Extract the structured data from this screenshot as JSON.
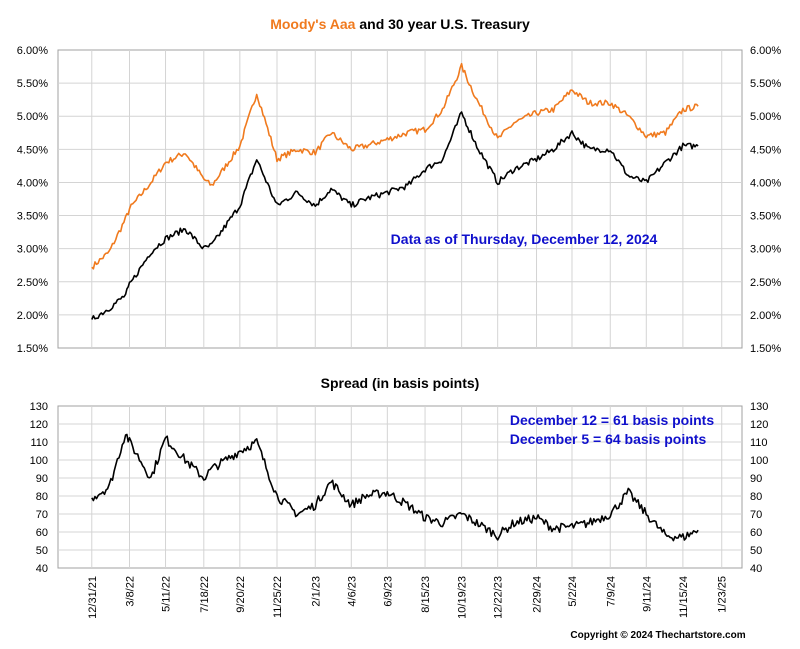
{
  "colors": {
    "aaa": "#F07A1E",
    "treasury": "#000000",
    "annotation": "#1010CC",
    "grid": "#D4D4D4",
    "frame": "#A0A0A0"
  },
  "chart_data": [
    {
      "type": "line",
      "title_part1": "Moody's Aaa",
      "title_part2": " and 30 year U.S. Treasury",
      "ylim": [
        1.5,
        6.0
      ],
      "y_ticks": [
        "1.50%",
        "2.00%",
        "2.50%",
        "3.00%",
        "3.50%",
        "4.00%",
        "4.50%",
        "5.00%",
        "5.50%",
        "6.00%"
      ],
      "grid": true,
      "annotation": "Data as of Thursday, December 12, 2024",
      "series": [
        {
          "name": "Moody's Aaa",
          "color": "#F07A1E",
          "x": [
            "12/31/21",
            "1/31/22",
            "3/1/22",
            "3/8/22",
            "4/15/22",
            "5/11/22",
            "6/15/22",
            "7/18/22",
            "8/1/22",
            "9/20/22",
            "10/20/22",
            "11/25/22",
            "12/31/22",
            "2/1/23",
            "3/1/23",
            "4/6/23",
            "5/1/23",
            "6/9/23",
            "7/15/23",
            "8/15/23",
            "9/15/23",
            "10/19/23",
            "11/15/23",
            "12/22/23",
            "1/20/24",
            "2/29/24",
            "3/30/24",
            "5/2/24",
            "6/1/24",
            "7/9/24",
            "8/10/24",
            "9/11/24",
            "10/15/24",
            "11/15/24",
            "12/12/24"
          ],
          "values": [
            2.72,
            2.95,
            3.45,
            3.6,
            4.0,
            4.3,
            4.45,
            4.05,
            3.95,
            4.55,
            5.35,
            4.35,
            4.5,
            4.45,
            4.75,
            4.5,
            4.55,
            4.65,
            4.75,
            4.8,
            5.1,
            5.75,
            5.25,
            4.65,
            4.9,
            5.05,
            5.1,
            5.4,
            5.2,
            5.2,
            5.0,
            4.7,
            4.75,
            5.1,
            5.15
          ]
        },
        {
          "name": "30 year U.S. Treasury",
          "color": "#000000",
          "x": [
            "12/31/21",
            "1/31/22",
            "3/1/22",
            "3/8/22",
            "4/15/22",
            "5/11/22",
            "6/15/22",
            "7/18/22",
            "8/1/22",
            "9/20/22",
            "10/20/22",
            "11/25/22",
            "12/31/22",
            "2/1/23",
            "3/1/23",
            "4/6/23",
            "5/1/23",
            "6/9/23",
            "7/15/23",
            "8/15/23",
            "9/15/23",
            "10/19/23",
            "11/15/23",
            "12/22/23",
            "1/20/24",
            "2/29/24",
            "3/30/24",
            "5/2/24",
            "6/1/24",
            "7/9/24",
            "8/10/24",
            "9/11/24",
            "10/15/24",
            "11/15/24",
            "12/12/24"
          ],
          "values": [
            1.93,
            2.1,
            2.3,
            2.45,
            2.95,
            3.15,
            3.3,
            3.0,
            3.05,
            3.65,
            4.35,
            3.65,
            3.85,
            3.65,
            3.9,
            3.65,
            3.75,
            3.85,
            3.95,
            4.2,
            4.35,
            5.05,
            4.55,
            4.0,
            4.2,
            4.35,
            4.5,
            4.75,
            4.5,
            4.5,
            4.1,
            4.0,
            4.3,
            4.55,
            4.55
          ]
        }
      ]
    },
    {
      "type": "line",
      "title": "Spread (in basis points)",
      "ylim": [
        40,
        130
      ],
      "y_ticks": [
        "40",
        "50",
        "60",
        "70",
        "80",
        "90",
        "100",
        "110",
        "120",
        "130"
      ],
      "grid": true,
      "annotations": [
        "December 12 = 61 basis points",
        "December 5 = 64 basis points"
      ],
      "series": [
        {
          "color": "#000000",
          "x": [
            "12/31/21",
            "1/31/22",
            "3/1/22",
            "3/8/22",
            "4/15/22",
            "5/11/22",
            "6/15/22",
            "7/18/22",
            "8/1/22",
            "9/20/22",
            "10/20/22",
            "11/25/22",
            "12/31/22",
            "2/1/23",
            "3/1/23",
            "4/6/23",
            "5/1/23",
            "6/9/23",
            "7/15/23",
            "8/15/23",
            "9/15/23",
            "10/19/23",
            "11/15/23",
            "12/22/23",
            "1/20/24",
            "2/29/24",
            "3/30/24",
            "5/2/24",
            "6/1/24",
            "7/9/24",
            "8/10/24",
            "9/11/24",
            "10/15/24",
            "11/15/24",
            "12/12/24"
          ],
          "values": [
            79,
            85,
            115,
            110,
            90,
            112,
            100,
            90,
            95,
            105,
            110,
            80,
            70,
            75,
            88,
            75,
            80,
            82,
            75,
            68,
            65,
            70,
            65,
            58,
            65,
            68,
            62,
            63,
            65,
            70,
            82,
            70,
            58,
            57,
            61
          ]
        }
      ],
      "x_ticks": [
        "12/31/21",
        "3/8/22",
        "5/11/22",
        "7/18/22",
        "9/20/22",
        "11/25/22",
        "2/1/23",
        "4/6/23",
        "6/9/23",
        "8/15/23",
        "10/19/23",
        "12/22/23",
        "2/29/24",
        "5/2/24",
        "7/9/24",
        "9/11/24",
        "11/15/24",
        "1/23/25"
      ]
    }
  ],
  "copyright": "Copyright © 2024 Thechartstore.com"
}
